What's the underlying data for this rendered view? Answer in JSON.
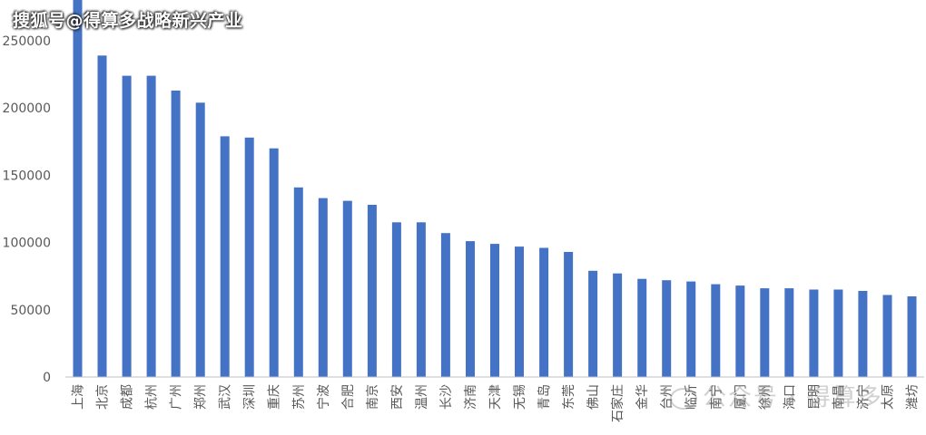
{
  "watermark_top": "搜狐号@得算多战略新兴产业",
  "watermark_bottom": "公众号 · 得算多",
  "colors": {
    "bar": "#4472C4",
    "axis": "#bfbfbf",
    "label": "#595959"
  },
  "chart_data": {
    "type": "bar",
    "title": "",
    "xlabel": "",
    "ylabel": "",
    "ylim": [
      0,
      280000
    ],
    "yticks": [
      0,
      50000,
      100000,
      150000,
      200000,
      250000
    ],
    "grid": false,
    "categories": [
      "上海",
      "北京",
      "成都",
      "杭州",
      "广州",
      "郑州",
      "武汉",
      "深圳",
      "重庆",
      "苏州",
      "宁波",
      "合肥",
      "南京",
      "西安",
      "温州",
      "长沙",
      "济南",
      "天津",
      "无锡",
      "青岛",
      "东莞",
      "佛山",
      "石家庄",
      "金华",
      "台州",
      "临沂",
      "南宁",
      "厦门",
      "徐州",
      "海口",
      "昆明",
      "南昌",
      "济宁",
      "太原",
      "潍坊"
    ],
    "values": [
      285000,
      239000,
      224000,
      224000,
      213000,
      204000,
      179000,
      178000,
      170000,
      141000,
      133000,
      131000,
      128000,
      115000,
      115000,
      107000,
      101000,
      99000,
      97000,
      96000,
      93000,
      79000,
      77000,
      73000,
      72000,
      71000,
      69000,
      68000,
      66000,
      66000,
      65000,
      65000,
      64000,
      61000,
      60000
    ]
  }
}
